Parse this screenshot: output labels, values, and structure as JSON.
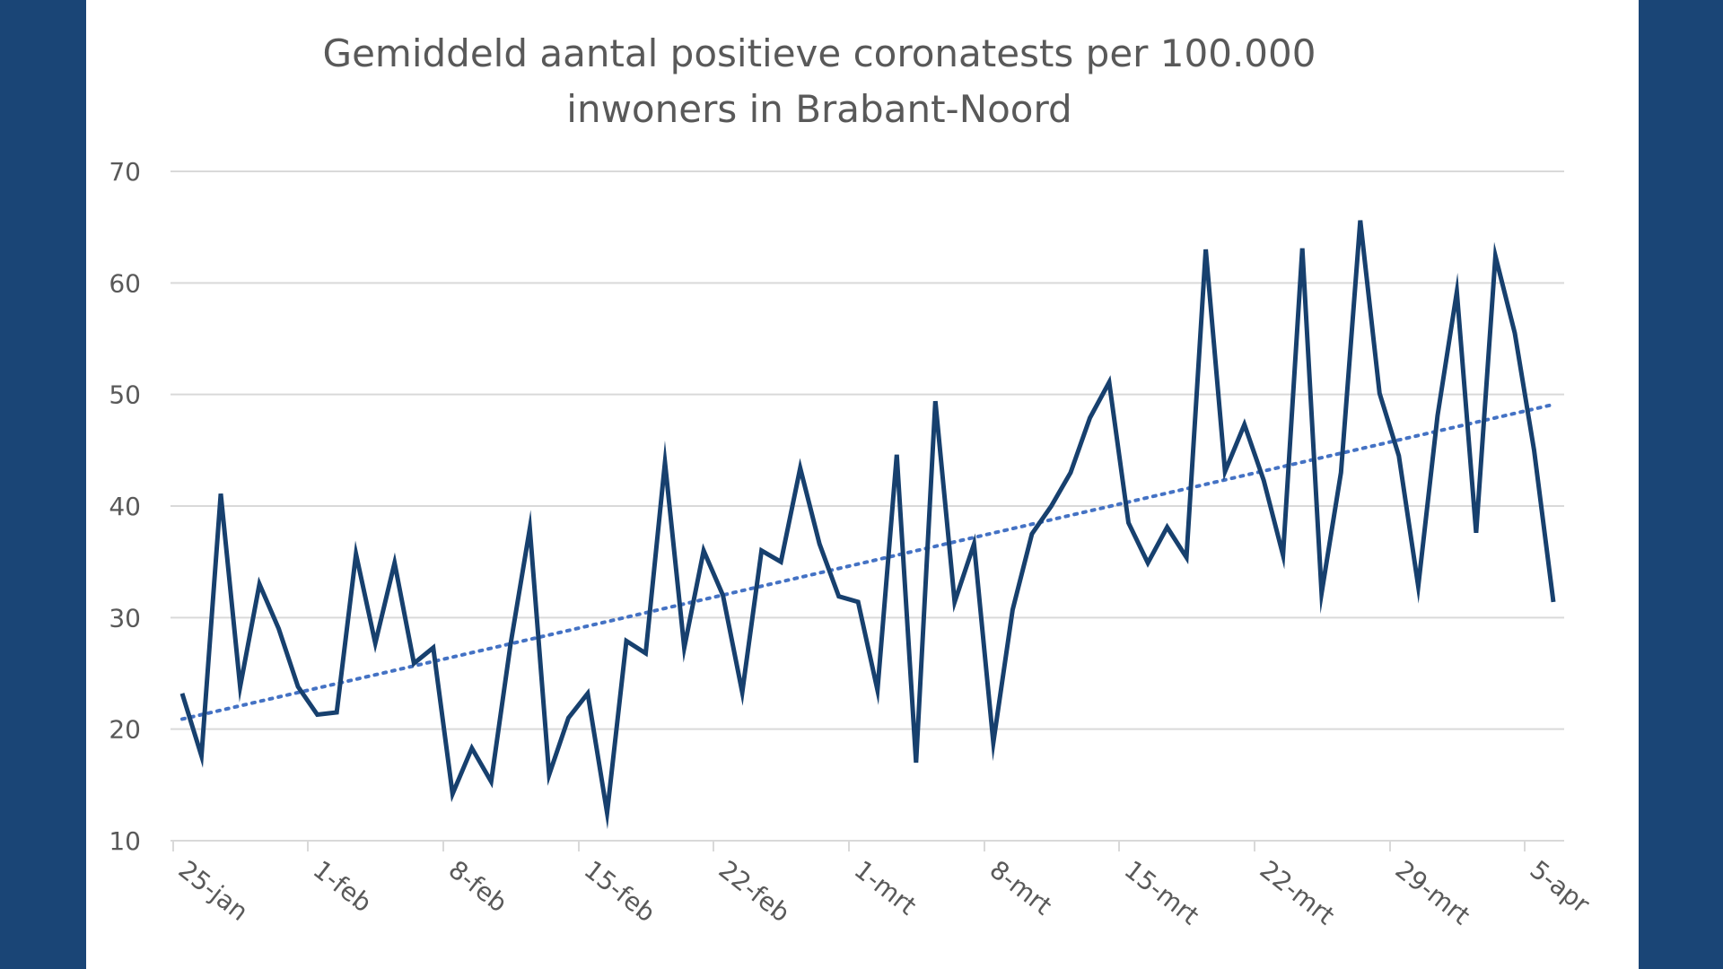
{
  "chart_data": {
    "type": "line",
    "title_lines": [
      "Gemiddeld aantal positieve coronatests per 100.000",
      "inwoners in Brabant-Noord"
    ],
    "xlabel": "",
    "ylabel": "",
    "ylim": [
      10,
      70
    ],
    "yticks": [
      10,
      20,
      30,
      40,
      50,
      60,
      70
    ],
    "grid": true,
    "legend": "none",
    "x_tick_labels": [
      "25-jan",
      "1-feb",
      "8-feb",
      "15-feb",
      "22-feb",
      "1-mrt",
      "8-mrt",
      "15-mrt",
      "22-mrt",
      "29-mrt",
      "5-apr"
    ],
    "x_tick_interval_days": 7,
    "series": [
      {
        "color": "#17406e",
        "style": "solid",
        "values": [
          23.2,
          17.6,
          41.1,
          23.8,
          33.0,
          29.0,
          23.8,
          21.3,
          21.5,
          35.7,
          27.7,
          34.9,
          25.9,
          27.3,
          14.2,
          18.3,
          15.3,
          27.6,
          38.0,
          15.9,
          21.0,
          23.2,
          12.5,
          27.9,
          26.8,
          43.9,
          27.3,
          36.0,
          32.0,
          23.3,
          36.0,
          35.0,
          43.4,
          36.6,
          31.9,
          31.4,
          23.5,
          44.6,
          17.0,
          49.4,
          31.4,
          36.6,
          18.8,
          30.7,
          37.5,
          40.0,
          43.0,
          47.9,
          51.1,
          38.5,
          34.9,
          38.1,
          35.4,
          63.0,
          43.1,
          47.3,
          42.3,
          35.6,
          63.1,
          32.2,
          43.0,
          65.6,
          50.1,
          44.5,
          32.8,
          48.1,
          59.2,
          37.6,
          62.4,
          55.5,
          45.0,
          31.4
        ]
      },
      {
        "color": "#4472c4",
        "style": "dotted",
        "trendline": true,
        "values": [
          20.9,
          49.1
        ]
      }
    ]
  }
}
